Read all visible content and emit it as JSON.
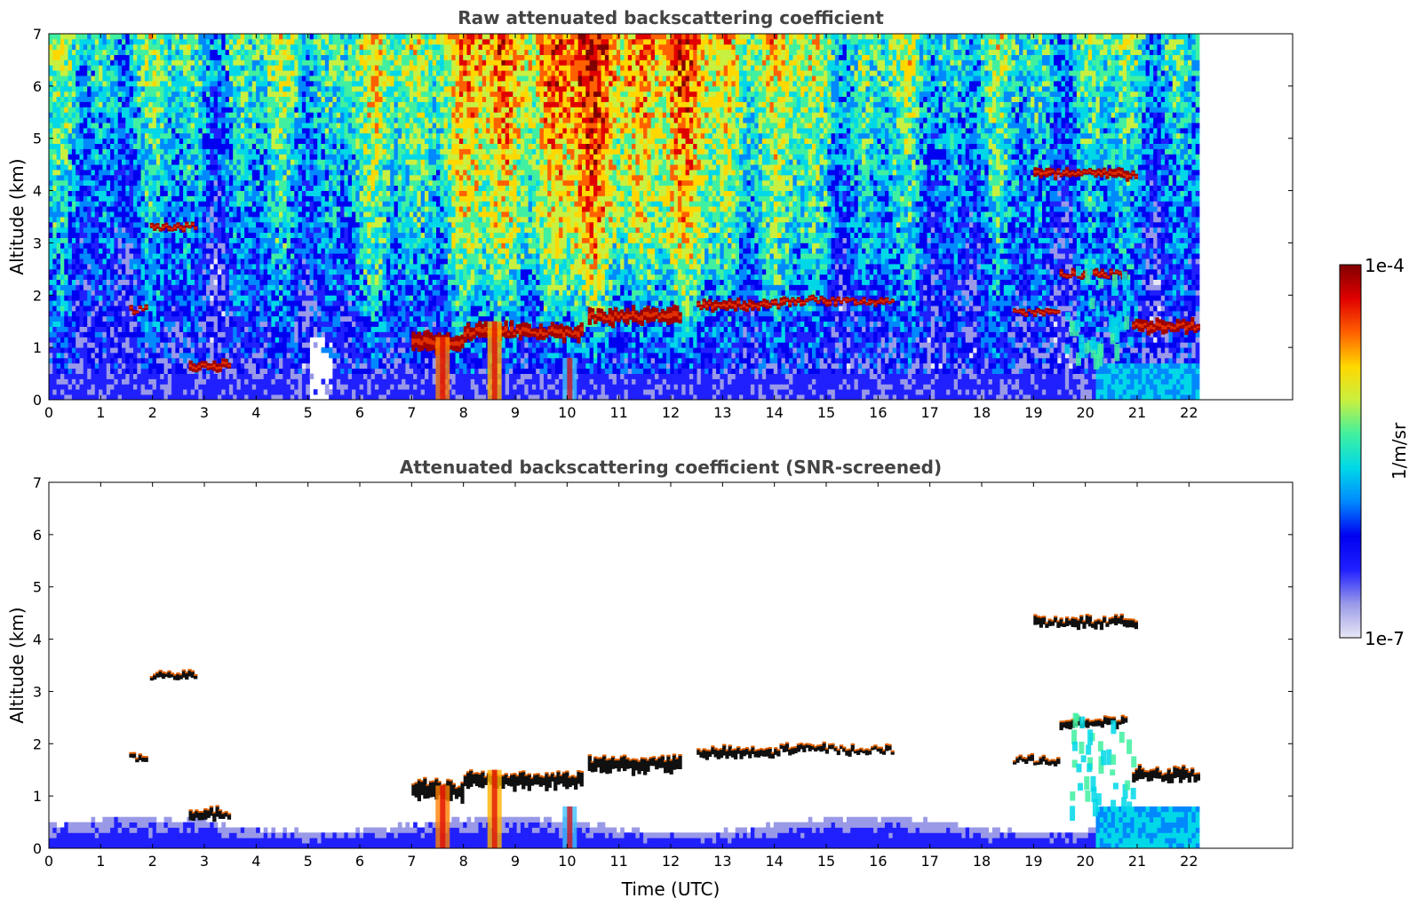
{
  "chart_data": [
    {
      "type": "heatmap",
      "title": "Raw attenuated backscattering coefficient",
      "xlabel": "",
      "ylabel": "Altitude (km)",
      "xlim": [
        0,
        24
      ],
      "ylim": [
        0,
        7
      ],
      "xticks": [
        "0",
        "1",
        "2",
        "3",
        "4",
        "5",
        "6",
        "7",
        "8",
        "9",
        "10",
        "11",
        "12",
        "13",
        "14",
        "15",
        "16",
        "17",
        "18",
        "19",
        "20",
        "21",
        "22"
      ],
      "yticks": [
        "0",
        "1",
        "2",
        "3",
        "4",
        "5",
        "6",
        "7"
      ],
      "data_end_time": 22.2,
      "features": [
        {
          "name": "cloud",
          "t0": 1.95,
          "t1": 2.85,
          "alt": 3.3,
          "thick": 0.1
        },
        {
          "name": "cloud",
          "t0": 2.7,
          "t1": 3.5,
          "alt": 0.65,
          "thick": 0.15
        },
        {
          "name": "cloud",
          "t0": 1.55,
          "t1": 1.9,
          "alt": 1.72,
          "thick": 0.1
        },
        {
          "name": "cloud",
          "t0": 7.0,
          "t1": 8.0,
          "alt": 1.1,
          "thick": 0.3
        },
        {
          "name": "cloud",
          "t0": 8.0,
          "t1": 10.3,
          "alt": 1.3,
          "thick": 0.25
        },
        {
          "name": "cloud",
          "t0": 10.4,
          "t1": 12.2,
          "alt": 1.6,
          "thick": 0.25
        },
        {
          "name": "cloud",
          "t0": 12.5,
          "t1": 14.1,
          "alt": 1.82,
          "thick": 0.15
        },
        {
          "name": "cloud",
          "t0": 14.1,
          "t1": 15.2,
          "alt": 1.9,
          "thick": 0.12
        },
        {
          "name": "cloud",
          "t0": 15.2,
          "t1": 16.3,
          "alt": 1.88,
          "thick": 0.1
        },
        {
          "name": "cloud",
          "t0": 19.0,
          "t1": 21.0,
          "alt": 4.32,
          "thick": 0.15
        },
        {
          "name": "cloud",
          "t0": 19.5,
          "t1": 20.8,
          "alt": 2.4,
          "thick": 0.12
        },
        {
          "name": "cloud",
          "t0": 18.6,
          "t1": 19.5,
          "alt": 1.68,
          "thick": 0.1
        },
        {
          "name": "cloud",
          "t0": 20.9,
          "t1": 22.2,
          "alt": 1.4,
          "thick": 0.2
        }
      ]
    },
    {
      "type": "heatmap",
      "title": "Attenuated backscattering coefficient (SNR-screened)",
      "xlabel": "Time (UTC)",
      "ylabel": "Altitude (km)",
      "xlim": [
        0,
        24
      ],
      "ylim": [
        0,
        7
      ],
      "xticks": [
        "0",
        "1",
        "2",
        "3",
        "4",
        "5",
        "6",
        "7",
        "8",
        "9",
        "10",
        "11",
        "12",
        "13",
        "14",
        "15",
        "16",
        "17",
        "18",
        "19",
        "20",
        "21",
        "22"
      ],
      "yticks": [
        "0",
        "1",
        "2",
        "3",
        "4",
        "5",
        "6",
        "7"
      ],
      "data_end_time": 22.2
    }
  ],
  "colorbar": {
    "label": "1/m/sr",
    "min_label": "1e-7",
    "max_label": "1e-4",
    "scale": "log",
    "colormap": [
      "#e8e8f5",
      "#9999e8",
      "#2020ff",
      "#0000f0",
      "#0088ff",
      "#00d8e8",
      "#40f0a0",
      "#c8f040",
      "#ffd800",
      "#ff6000",
      "#e00000",
      "#800000"
    ]
  }
}
